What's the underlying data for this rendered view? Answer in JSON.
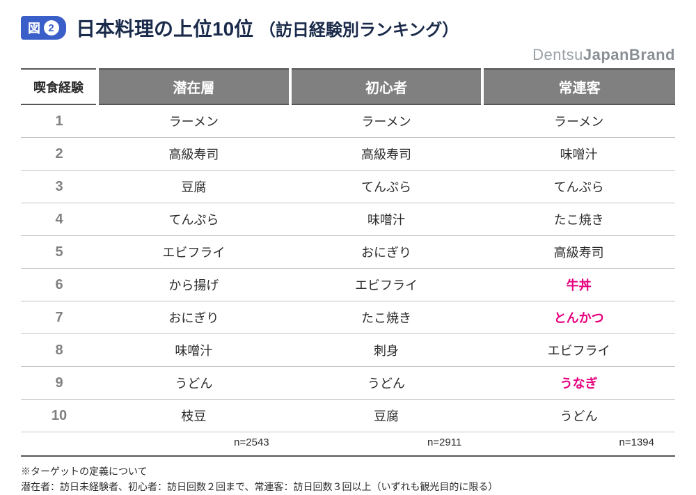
{
  "figure_badge": {
    "label": "図",
    "number": "2"
  },
  "title_main": "日本料理の上位10位",
  "title_sub": "（訪日経験別ランキング）",
  "brand": {
    "light": "Dentsu",
    "bold": "JapanBrand"
  },
  "table": {
    "rank_header": "喫食経験",
    "columns": [
      "潜在層",
      "初心者",
      "常連客"
    ],
    "rows": [
      {
        "rank": "1",
        "cells": [
          "ラーメン",
          "ラーメン",
          "ラーメン"
        ],
        "hl": [
          false,
          false,
          false
        ]
      },
      {
        "rank": "2",
        "cells": [
          "高級寿司",
          "高級寿司",
          "味噌汁"
        ],
        "hl": [
          false,
          false,
          false
        ]
      },
      {
        "rank": "3",
        "cells": [
          "豆腐",
          "てんぷら",
          "てんぷら"
        ],
        "hl": [
          false,
          false,
          false
        ]
      },
      {
        "rank": "4",
        "cells": [
          "てんぷら",
          "味噌汁",
          "たこ焼き"
        ],
        "hl": [
          false,
          false,
          false
        ]
      },
      {
        "rank": "5",
        "cells": [
          "エビフライ",
          "おにぎり",
          "高級寿司"
        ],
        "hl": [
          false,
          false,
          false
        ]
      },
      {
        "rank": "6",
        "cells": [
          "から揚げ",
          "エビフライ",
          "牛丼"
        ],
        "hl": [
          false,
          false,
          true
        ]
      },
      {
        "rank": "7",
        "cells": [
          "おにぎり",
          "たこ焼き",
          "とんかつ"
        ],
        "hl": [
          false,
          false,
          true
        ]
      },
      {
        "rank": "8",
        "cells": [
          "味噌汁",
          "刺身",
          "エビフライ"
        ],
        "hl": [
          false,
          false,
          false
        ]
      },
      {
        "rank": "9",
        "cells": [
          "うどん",
          "うどん",
          "うなぎ"
        ],
        "hl": [
          false,
          false,
          true
        ]
      },
      {
        "rank": "10",
        "cells": [
          "枝豆",
          "豆腐",
          "うどん"
        ],
        "hl": [
          false,
          false,
          false
        ]
      }
    ],
    "n_values": [
      "n=2543",
      "n=2911",
      "n=1394"
    ]
  },
  "footnote_title": "※ターゲットの定義について",
  "footnote_body": "潜在者：訪日未経験者、初心者：訪日回数２回まで、常連客：訪日回数３回以上（いずれも観光目的に限る）",
  "colors": {
    "badge_bg": "#3a5fc8",
    "header_bg": "#808080",
    "highlight": "#e6007e",
    "text": "#2b2b2b",
    "rank_text": "#808080",
    "border": "#c4c4c4"
  }
}
